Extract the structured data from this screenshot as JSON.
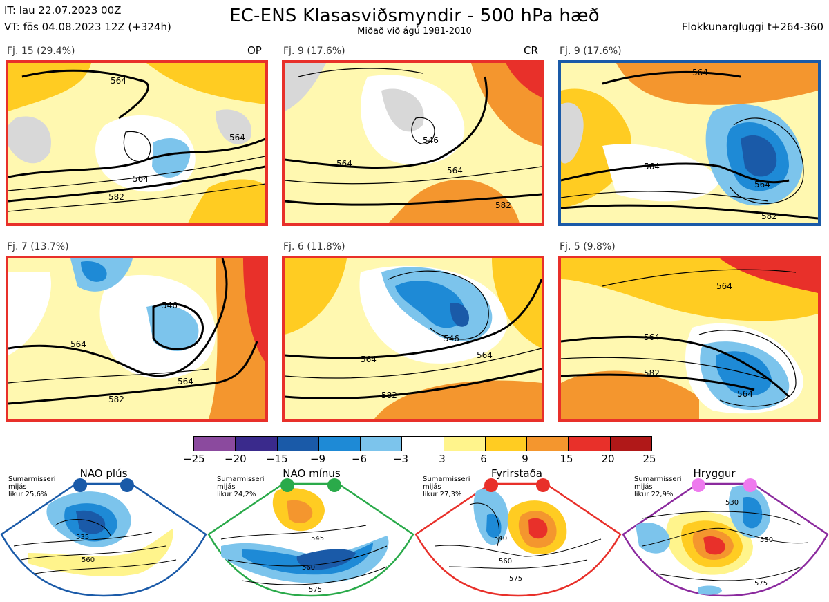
{
  "header": {
    "it_line": "IT: lau 22.07.2023 00Z",
    "vt_line": "VT: fös 04.08.2023 12Z  (+324h)",
    "title": "EC-ENS Klasasviðsmyndir - 500 hPa hæð",
    "subtitle": "Miðað við ágú 1981-2010",
    "window": "Flokkunargluggi t+264-360"
  },
  "panels": [
    {
      "label": "Fj. 15 (29.4%)",
      "tag": "OP",
      "border": "#e8302a",
      "contours": [
        "564",
        "564",
        "564",
        "582"
      ]
    },
    {
      "label": "Fj. 9 (17.6%)",
      "tag": "CR",
      "border": "#e8302a",
      "contours": [
        "546",
        "564",
        "564",
        "582"
      ]
    },
    {
      "label": "Fj. 9 (17.6%)",
      "tag": "",
      "border": "#1a5aa8",
      "contours": [
        "564",
        "564",
        "564",
        "582"
      ]
    },
    {
      "label": "Fj. 7 (13.7%)",
      "tag": "",
      "border": "#e8302a",
      "contours": [
        "546",
        "564",
        "564",
        "582"
      ]
    },
    {
      "label": "Fj. 6 (11.8%)",
      "tag": "",
      "border": "#e8302a",
      "contours": [
        "546",
        "564",
        "564",
        "582"
      ]
    },
    {
      "label": "Fj. 5 (9.8%)",
      "tag": "",
      "border": "#e8302a",
      "contours": [
        "564",
        "564",
        "564",
        "582"
      ]
    }
  ],
  "colorbar": {
    "labels": [
      "−25",
      "−20",
      "−15",
      "−9",
      "−6",
      "−3",
      "3",
      "6",
      "9",
      "15",
      "20",
      "25"
    ],
    "colors": [
      "#8b4a9e",
      "#3a2a8c",
      "#1a5aa8",
      "#1e8ad6",
      "#7cc4ec",
      "#ffffff",
      "#fff48c",
      "#ffcc22",
      "#f4962e",
      "#e8302a",
      "#b01818"
    ]
  },
  "regimes": [
    {
      "title": "NAO plús",
      "meta": [
        "Sumarmisseri",
        "mijás",
        "likur 25,6%"
      ],
      "color": "#1a5aa8",
      "dot": "#1a5aa8",
      "contours": [
        "535",
        "560"
      ]
    },
    {
      "title": "NAO mínus",
      "meta": [
        "Sumarmisseri",
        "mijás",
        "likur 24,2%"
      ],
      "color": "#2aaa4a",
      "dot": "#2aaa4a",
      "contours": [
        "545",
        "560",
        "575"
      ]
    },
    {
      "title": "Fyrirstaða",
      "meta": [
        "Sumarmisseri",
        "mijás",
        "likur 27,3%"
      ],
      "color": "#e8302a",
      "dot": "#e8302a",
      "contours": [
        "540",
        "560",
        "575"
      ]
    },
    {
      "title": "Hryggur",
      "meta": [
        "Sumarmisseri",
        "mijás",
        "likur 22,9%"
      ],
      "color": "#8b2a9e",
      "dot": "#ee7aee",
      "contours": [
        "530",
        "550",
        "575"
      ]
    }
  ]
}
